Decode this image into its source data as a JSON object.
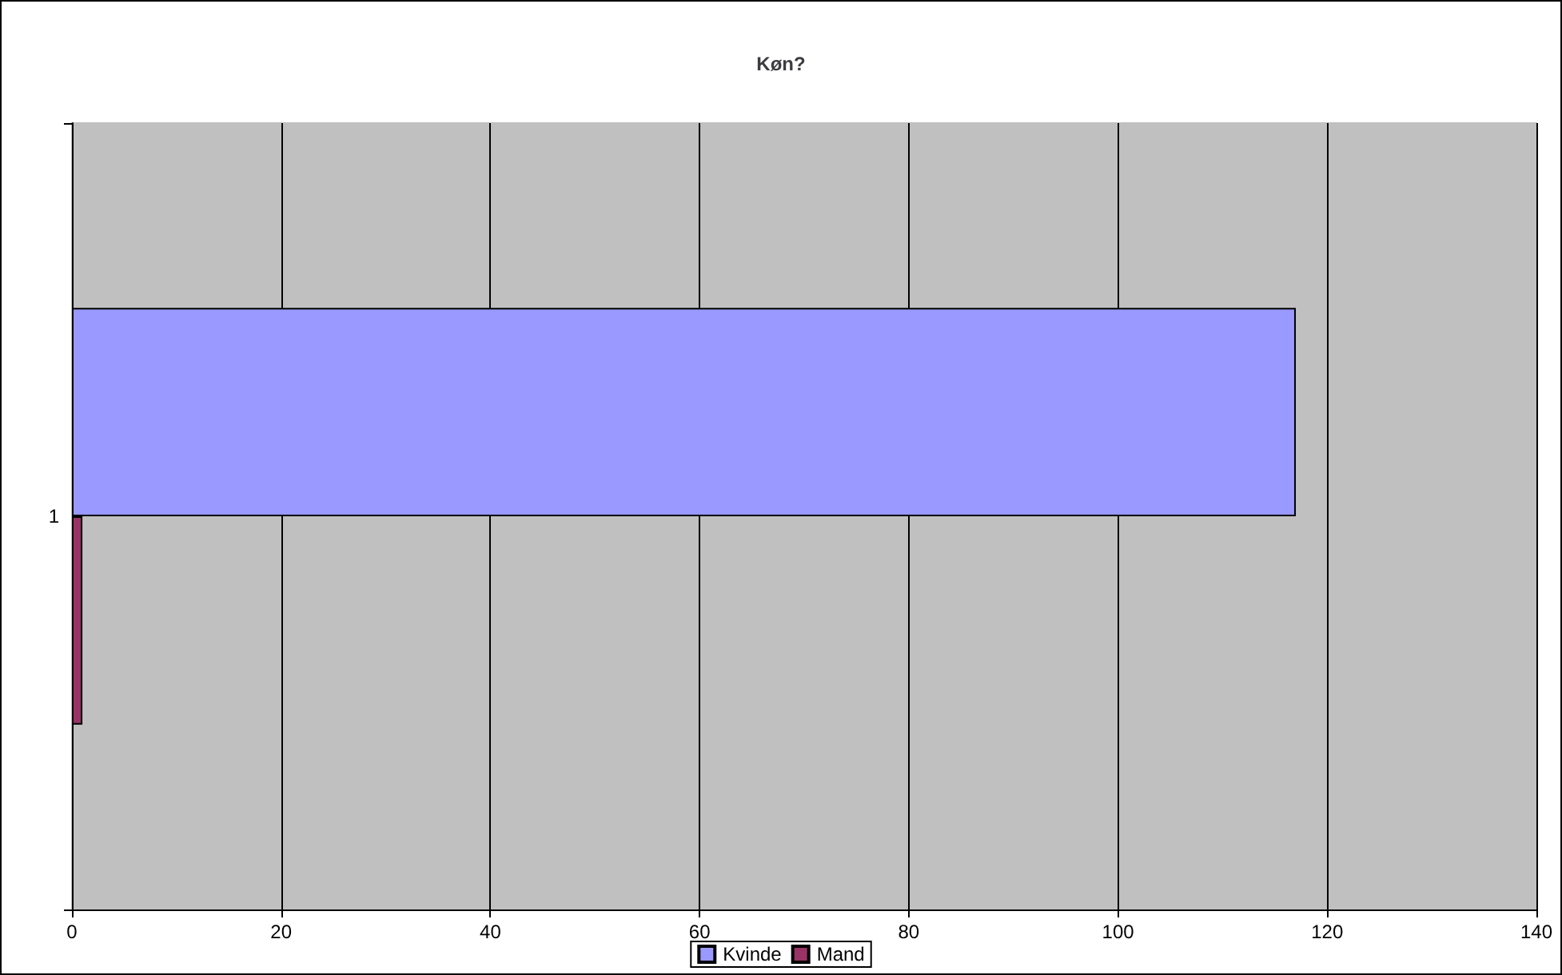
{
  "chart_data": {
    "type": "bar",
    "title": "Køn?",
    "orientation": "horizontal",
    "categories": [
      "1"
    ],
    "series": [
      {
        "name": "Kvinde",
        "color": "#9999ff",
        "values": [
          117
        ]
      },
      {
        "name": "Mand",
        "color": "#993366",
        "values": [
          1
        ]
      }
    ],
    "xlim": [
      0,
      140
    ],
    "xticks": [
      0,
      20,
      40,
      60,
      80,
      100,
      120,
      140
    ],
    "grid": "x",
    "legend": "bottom"
  }
}
